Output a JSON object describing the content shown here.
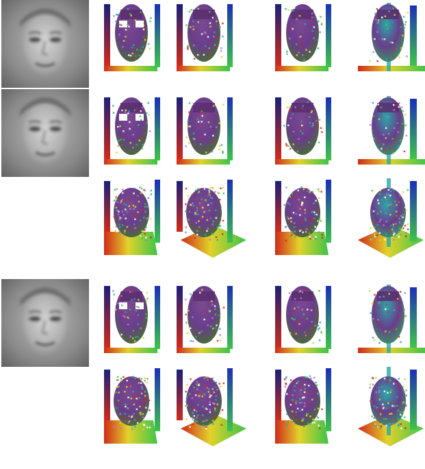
{
  "figure": {
    "face_inputs": [
      {
        "id": "face-1",
        "row": 1
      },
      {
        "id": "face-2",
        "row": 2
      },
      {
        "id": "face-4",
        "row": 4
      }
    ],
    "grid": {
      "rows": 5,
      "columns": 4,
      "row_styles": [
        "front-flat",
        "front-flat",
        "tilted-dense",
        "front-flat",
        "tilted-dense"
      ],
      "column_views": [
        "front",
        "side-left",
        "side-right",
        "rotated"
      ]
    },
    "colors": {
      "background": "#ffffff",
      "face_gray_light": "#c8c8c8",
      "face_gray_dark": "#5a5a5a",
      "voxel_purple": "#6a3d8c",
      "voxel_green": "#3ec44a",
      "voxel_red": "#d02a1a",
      "voxel_blue": "#1a2fb8",
      "voxel_teal": "#2aa8a8",
      "voxel_yellow": "#e2d22a"
    }
  }
}
